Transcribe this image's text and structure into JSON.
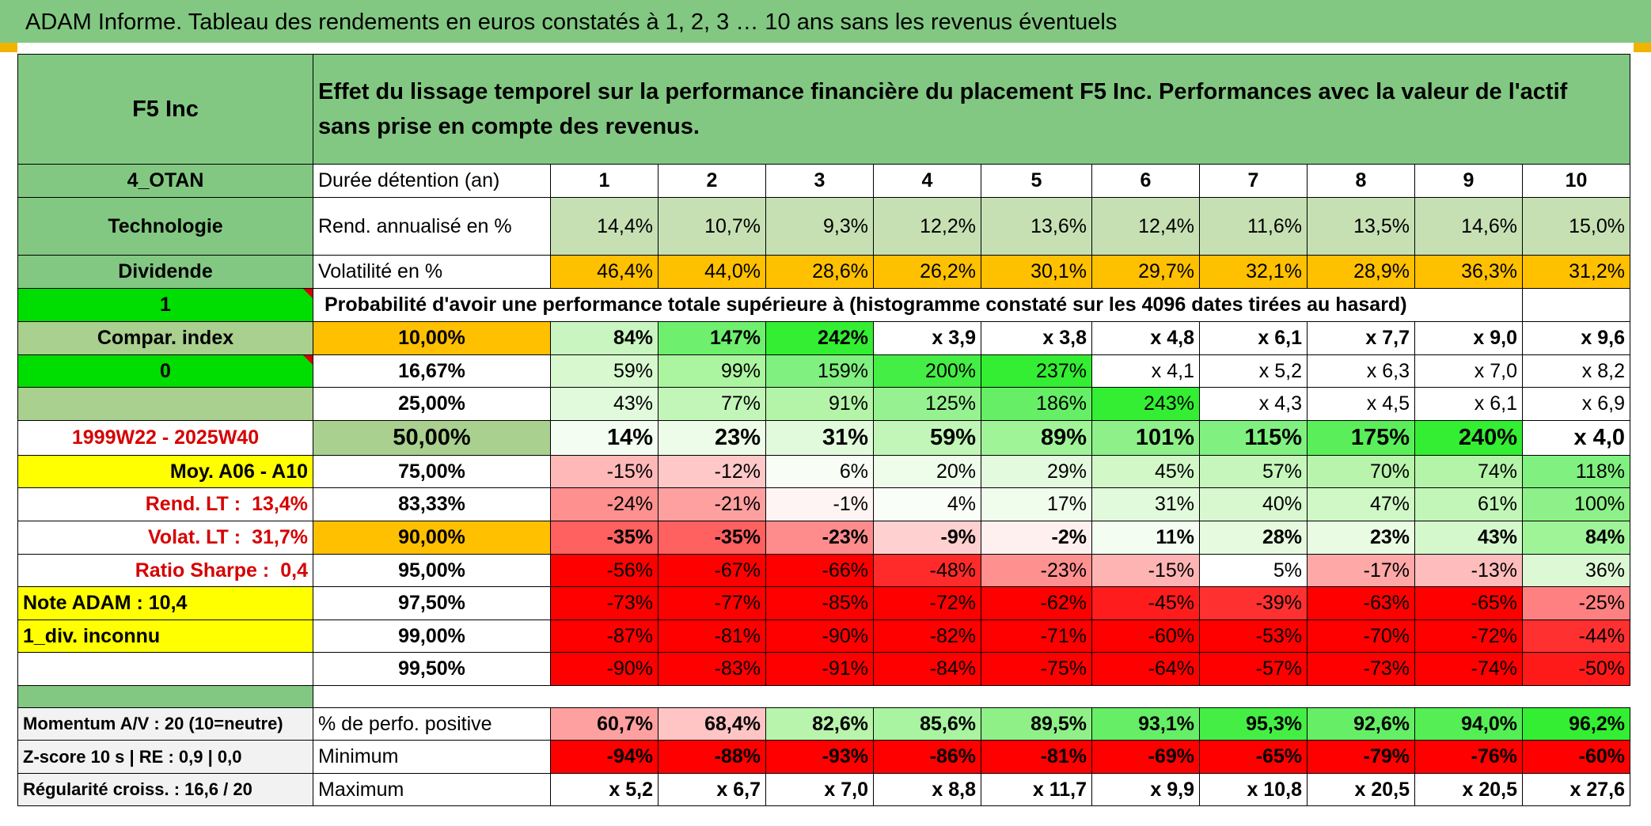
{
  "title": "ADAM Informe. Tableau des rendements en euros constatés à 1, 2, 3 … 10 ans sans les revenus éventuels",
  "colors": {
    "header_green": "#82c882",
    "bright_green": "#00dd00",
    "orange": "#ffc000",
    "yellow": "#ffff00",
    "red_text": "#d60000",
    "cell_green_strong": "#33ee33",
    "cell_red_strong": "#ff0000"
  },
  "asset": "F5 Inc",
  "description": "Effet du lissage temporel sur la performance financière du placement F5 Inc. Performances avec la valeur de l'actif sans prise en compte des revenus.",
  "side": {
    "code": "4_OTAN",
    "sector": "Technologie",
    "dividend": "Dividende",
    "flag1": "1",
    "compar_index": "Compar. index",
    "flag0": "0",
    "period": "1999W22 - 2025W40",
    "moy": "Moy. A06 - A10",
    "rend_lt_label": "Rend. LT :",
    "rend_lt_value": "13,4%",
    "volat_lt_label": "Volat. LT :",
    "volat_lt_value": "31,7%",
    "sharpe_label": "Ratio Sharpe :",
    "sharpe_value": "0,4",
    "note": "Note ADAM : 10,4",
    "div_unknown": "1_div. inconnu"
  },
  "horizon_label": "Durée détention (an)",
  "horizons": [
    "1",
    "2",
    "3",
    "4",
    "5",
    "6",
    "7",
    "8",
    "9",
    "10"
  ],
  "rend_label": "Rend. annualisé en %",
  "rend_values": [
    "14,4%",
    "10,7%",
    "9,3%",
    "12,2%",
    "13,6%",
    "12,4%",
    "11,6%",
    "13,5%",
    "14,6%",
    "15,0%"
  ],
  "vol_label": "Volatilité en %",
  "vol_values": [
    "46,4%",
    "44,0%",
    "28,6%",
    "26,2%",
    "30,1%",
    "29,7%",
    "32,1%",
    "28,9%",
    "36,3%",
    "31,2%"
  ],
  "prob_label": "Probabilité d'avoir une performance totale supérieure à (histogramme constaté sur les 4096 dates tirées au hasard)",
  "quantiles": [
    {
      "p": "10,00%",
      "values": [
        "84%",
        "147%",
        "242%",
        "x 3,9",
        "x 3,8",
        "x 4,8",
        "x 6,1",
        "x 7,7",
        "x 9,0",
        "x 9,6"
      ],
      "colors": [
        "#c8f5c0",
        "#6ef06e",
        "#33ee33",
        "#ffffff",
        "#ffffff",
        "#ffffff",
        "#ffffff",
        "#ffffff",
        "#ffffff",
        "#ffffff"
      ]
    },
    {
      "p": "16,67%",
      "values": [
        "59%",
        "99%",
        "159%",
        "200%",
        "237%",
        "x 4,1",
        "x 5,2",
        "x 6,3",
        "x 7,0",
        "x 8,2"
      ],
      "colors": [
        "#d8f8d0",
        "#acf5a0",
        "#80f080",
        "#44ee44",
        "#33ee33",
        "#ffffff",
        "#ffffff",
        "#ffffff",
        "#ffffff",
        "#ffffff"
      ]
    },
    {
      "p": "25,00%",
      "values": [
        "43%",
        "77%",
        "91%",
        "125%",
        "186%",
        "243%",
        "x 4,3",
        "x 4,5",
        "x 6,1",
        "x 6,9"
      ],
      "colors": [
        "#e2fadc",
        "#c2f6b8",
        "#b4f4a8",
        "#96f290",
        "#66ee66",
        "#33ee33",
        "#ffffff",
        "#ffffff",
        "#ffffff",
        "#ffffff"
      ]
    },
    {
      "p": "50,00%",
      "values": [
        "14%",
        "23%",
        "31%",
        "59%",
        "89%",
        "101%",
        "115%",
        "175%",
        "240%",
        "x 4,0"
      ],
      "colors": [
        "#f4fdf2",
        "#ecfce8",
        "#e2fadc",
        "#c2f6b8",
        "#a0f498",
        "#8ef088",
        "#80f080",
        "#5aee5a",
        "#33ee33",
        "#ffffff"
      ]
    },
    {
      "p": "75,00%",
      "values": [
        "-15%",
        "-12%",
        "6%",
        "20%",
        "29%",
        "45%",
        "57%",
        "70%",
        "74%",
        "118%"
      ],
      "colors": [
        "#ffb8b8",
        "#ffc8c8",
        "#f8fef6",
        "#eefcea",
        "#e4fadf",
        "#d2f8c8",
        "#c6f6bc",
        "#b8f4ac",
        "#b4f4a8",
        "#80f080"
      ]
    },
    {
      "p": "83,33%",
      "values": [
        "-24%",
        "-21%",
        "-1%",
        "4%",
        "17%",
        "31%",
        "40%",
        "47%",
        "61%",
        "100%"
      ],
      "colors": [
        "#ff9090",
        "#ffa0a0",
        "#fff4f4",
        "#fafef8",
        "#f0fcec",
        "#e2fadc",
        "#d8f8d0",
        "#d0f8c6",
        "#c2f6b8",
        "#8ef088"
      ]
    },
    {
      "p": "90,00%",
      "values": [
        "-35%",
        "-35%",
        "-23%",
        "-9%",
        "-2%",
        "11%",
        "28%",
        "23%",
        "43%",
        "84%"
      ],
      "colors": [
        "#ff6060",
        "#ff6060",
        "#ff8c8c",
        "#ffd0d0",
        "#fff0f0",
        "#f4fdf2",
        "#e6fae0",
        "#eafbe4",
        "#d4f8cc",
        "#a0f498"
      ]
    },
    {
      "p": "95,00%",
      "values": [
        "-56%",
        "-67%",
        "-66%",
        "-48%",
        "-23%",
        "-15%",
        "5%",
        "-17%",
        "-13%",
        "36%"
      ],
      "colors": [
        "#ff0000",
        "#ff0000",
        "#ff0000",
        "#ff2a2a",
        "#ff9090",
        "#ffb4b4",
        "#ffffff",
        "#ffa8a8",
        "#ffbcbc",
        "#dcf8d4"
      ]
    },
    {
      "p": "97,50%",
      "values": [
        "-73%",
        "-77%",
        "-85%",
        "-72%",
        "-62%",
        "-45%",
        "-39%",
        "-63%",
        "-65%",
        "-25%"
      ],
      "colors": [
        "#ff0000",
        "#ff0000",
        "#ff0000",
        "#ff0000",
        "#ff0000",
        "#ff1c1c",
        "#ff3030",
        "#ff0000",
        "#ff0000",
        "#ff8080"
      ]
    },
    {
      "p": "99,00%",
      "values": [
        "-87%",
        "-81%",
        "-90%",
        "-82%",
        "-71%",
        "-60%",
        "-53%",
        "-70%",
        "-72%",
        "-44%"
      ],
      "colors": [
        "#ff0000",
        "#ff0000",
        "#ff0000",
        "#ff0000",
        "#ff0000",
        "#ff0000",
        "#ff0000",
        "#ff0000",
        "#ff0000",
        "#ff3030"
      ]
    },
    {
      "p": "99,50%",
      "values": [
        "-90%",
        "-83%",
        "-91%",
        "-84%",
        "-75%",
        "-64%",
        "-57%",
        "-73%",
        "-74%",
        "-50%"
      ],
      "colors": [
        "#ff0000",
        "#ff0000",
        "#ff0000",
        "#ff0000",
        "#ff0000",
        "#ff0000",
        "#ff0000",
        "#ff0000",
        "#ff0000",
        "#ff1a1a"
      ]
    }
  ],
  "footer": {
    "momentum": "Momentum A/V : 20 (10=neutre)",
    "zscore": "Z-score 10 s | RE : 0,9 | 0,0",
    "regularite": "Régularité croiss. : 16,6 / 20",
    "pos_label": "% de perfo. positive",
    "pos_values": [
      "60,7%",
      "68,4%",
      "82,6%",
      "85,6%",
      "89,5%",
      "93,1%",
      "95,3%",
      "92,6%",
      "94,0%",
      "96,2%"
    ],
    "pos_colors": [
      "#ffa0a0",
      "#ffc4c4",
      "#b8f4ac",
      "#a8f4a0",
      "#90f088",
      "#66ee66",
      "#44ee44",
      "#66ee66",
      "#55ee55",
      "#33ee33"
    ],
    "min_label": "Minimum",
    "min_values": [
      "-94%",
      "-88%",
      "-93%",
      "-86%",
      "-81%",
      "-69%",
      "-65%",
      "-79%",
      "-76%",
      "-60%"
    ],
    "max_label": "Maximum",
    "max_values": [
      "x 5,2",
      "x 6,7",
      "x 7,0",
      "x 8,8",
      "x 11,7",
      "x 9,9",
      "x 10,8",
      "x 20,5",
      "x 20,5",
      "x 27,6"
    ]
  }
}
